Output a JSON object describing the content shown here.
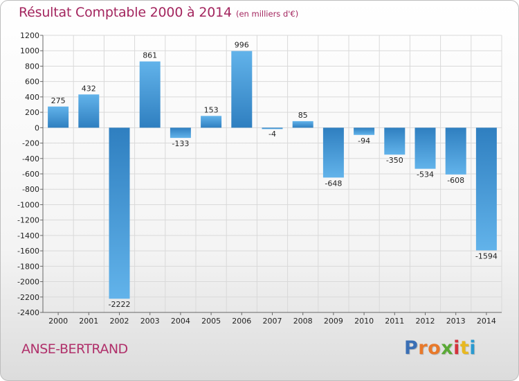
{
  "header": {
    "title": "Résultat Comptable 2000 à 2014",
    "subtitle": "(en milliers d'€)"
  },
  "footer": {
    "commune": "ANSE-BERTRAND",
    "logo_letters": [
      "P",
      "r",
      "o",
      "x",
      "i",
      "t",
      "i"
    ],
    "logo_colors": [
      "#3a6fb5",
      "#e8792a",
      "#e8792a",
      "#5aa936",
      "#d4333d",
      "#e8b820",
      "#2a9ad0"
    ]
  },
  "chart_data": {
    "type": "bar",
    "title": "Résultat Comptable 2000 à 2014",
    "subtitle": "(en milliers d'€)",
    "categories": [
      "2000",
      "2001",
      "2002",
      "2003",
      "2004",
      "2005",
      "2006",
      "2007",
      "2008",
      "2009",
      "2010",
      "2011",
      "2012",
      "2013",
      "2014"
    ],
    "values": [
      275,
      432,
      -2222,
      861,
      -133,
      153,
      996,
      -4,
      85,
      -648,
      -94,
      -350,
      -534,
      -608,
      -1594
    ],
    "value_labels": [
      "275",
      "432",
      "-2222",
      "861",
      "-133",
      "153",
      "996",
      "-4",
      "85",
      "-648",
      "-94",
      "-350",
      "-534",
      "-608",
      "-1594"
    ],
    "ylim": [
      -2400,
      1200
    ],
    "yticks": [
      1200,
      1000,
      800,
      600,
      400,
      200,
      0,
      -200,
      -400,
      -600,
      -800,
      -1000,
      -1200,
      -1400,
      -1600,
      -1800,
      -2000,
      -2200,
      -2400
    ],
    "ytick_labels": [
      "1200",
      "1000",
      "800",
      "600",
      "400",
      "200",
      "0",
      "-200",
      "-400",
      "-600",
      "-800",
      "-1000",
      "-1200",
      "-1400",
      "-1600",
      "-1800",
      "-2000",
      "-2200",
      "-2400"
    ],
    "grid": true,
    "bar_color_light": "#62b3ea",
    "bar_color_dark": "#2f7fc0",
    "grid_color": "#d9d9d9"
  }
}
